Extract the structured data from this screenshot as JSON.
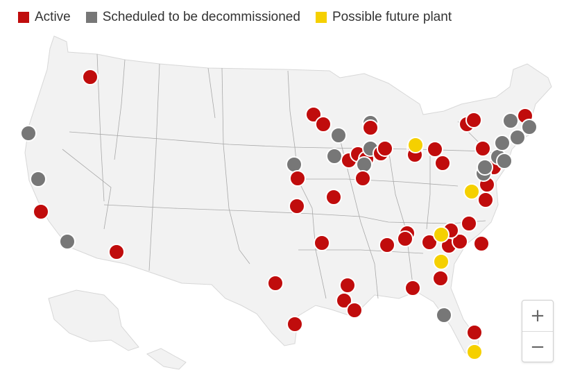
{
  "legend": {
    "items": [
      {
        "label": "Active",
        "color": "#c00c0c"
      },
      {
        "label": "Scheduled to be decommissioned",
        "color": "#777777"
      },
      {
        "label": "Possible future plant",
        "color": "#f5d000"
      }
    ]
  },
  "zoom": {
    "in_label": "+",
    "out_label": "−"
  },
  "map": {
    "land_color": "#f2f2f2",
    "border_color": "#a8a8a8",
    "marker_colors": {
      "active": "#c00c0c",
      "decommission": "#777777",
      "future": "#f5d000"
    }
  }
}
